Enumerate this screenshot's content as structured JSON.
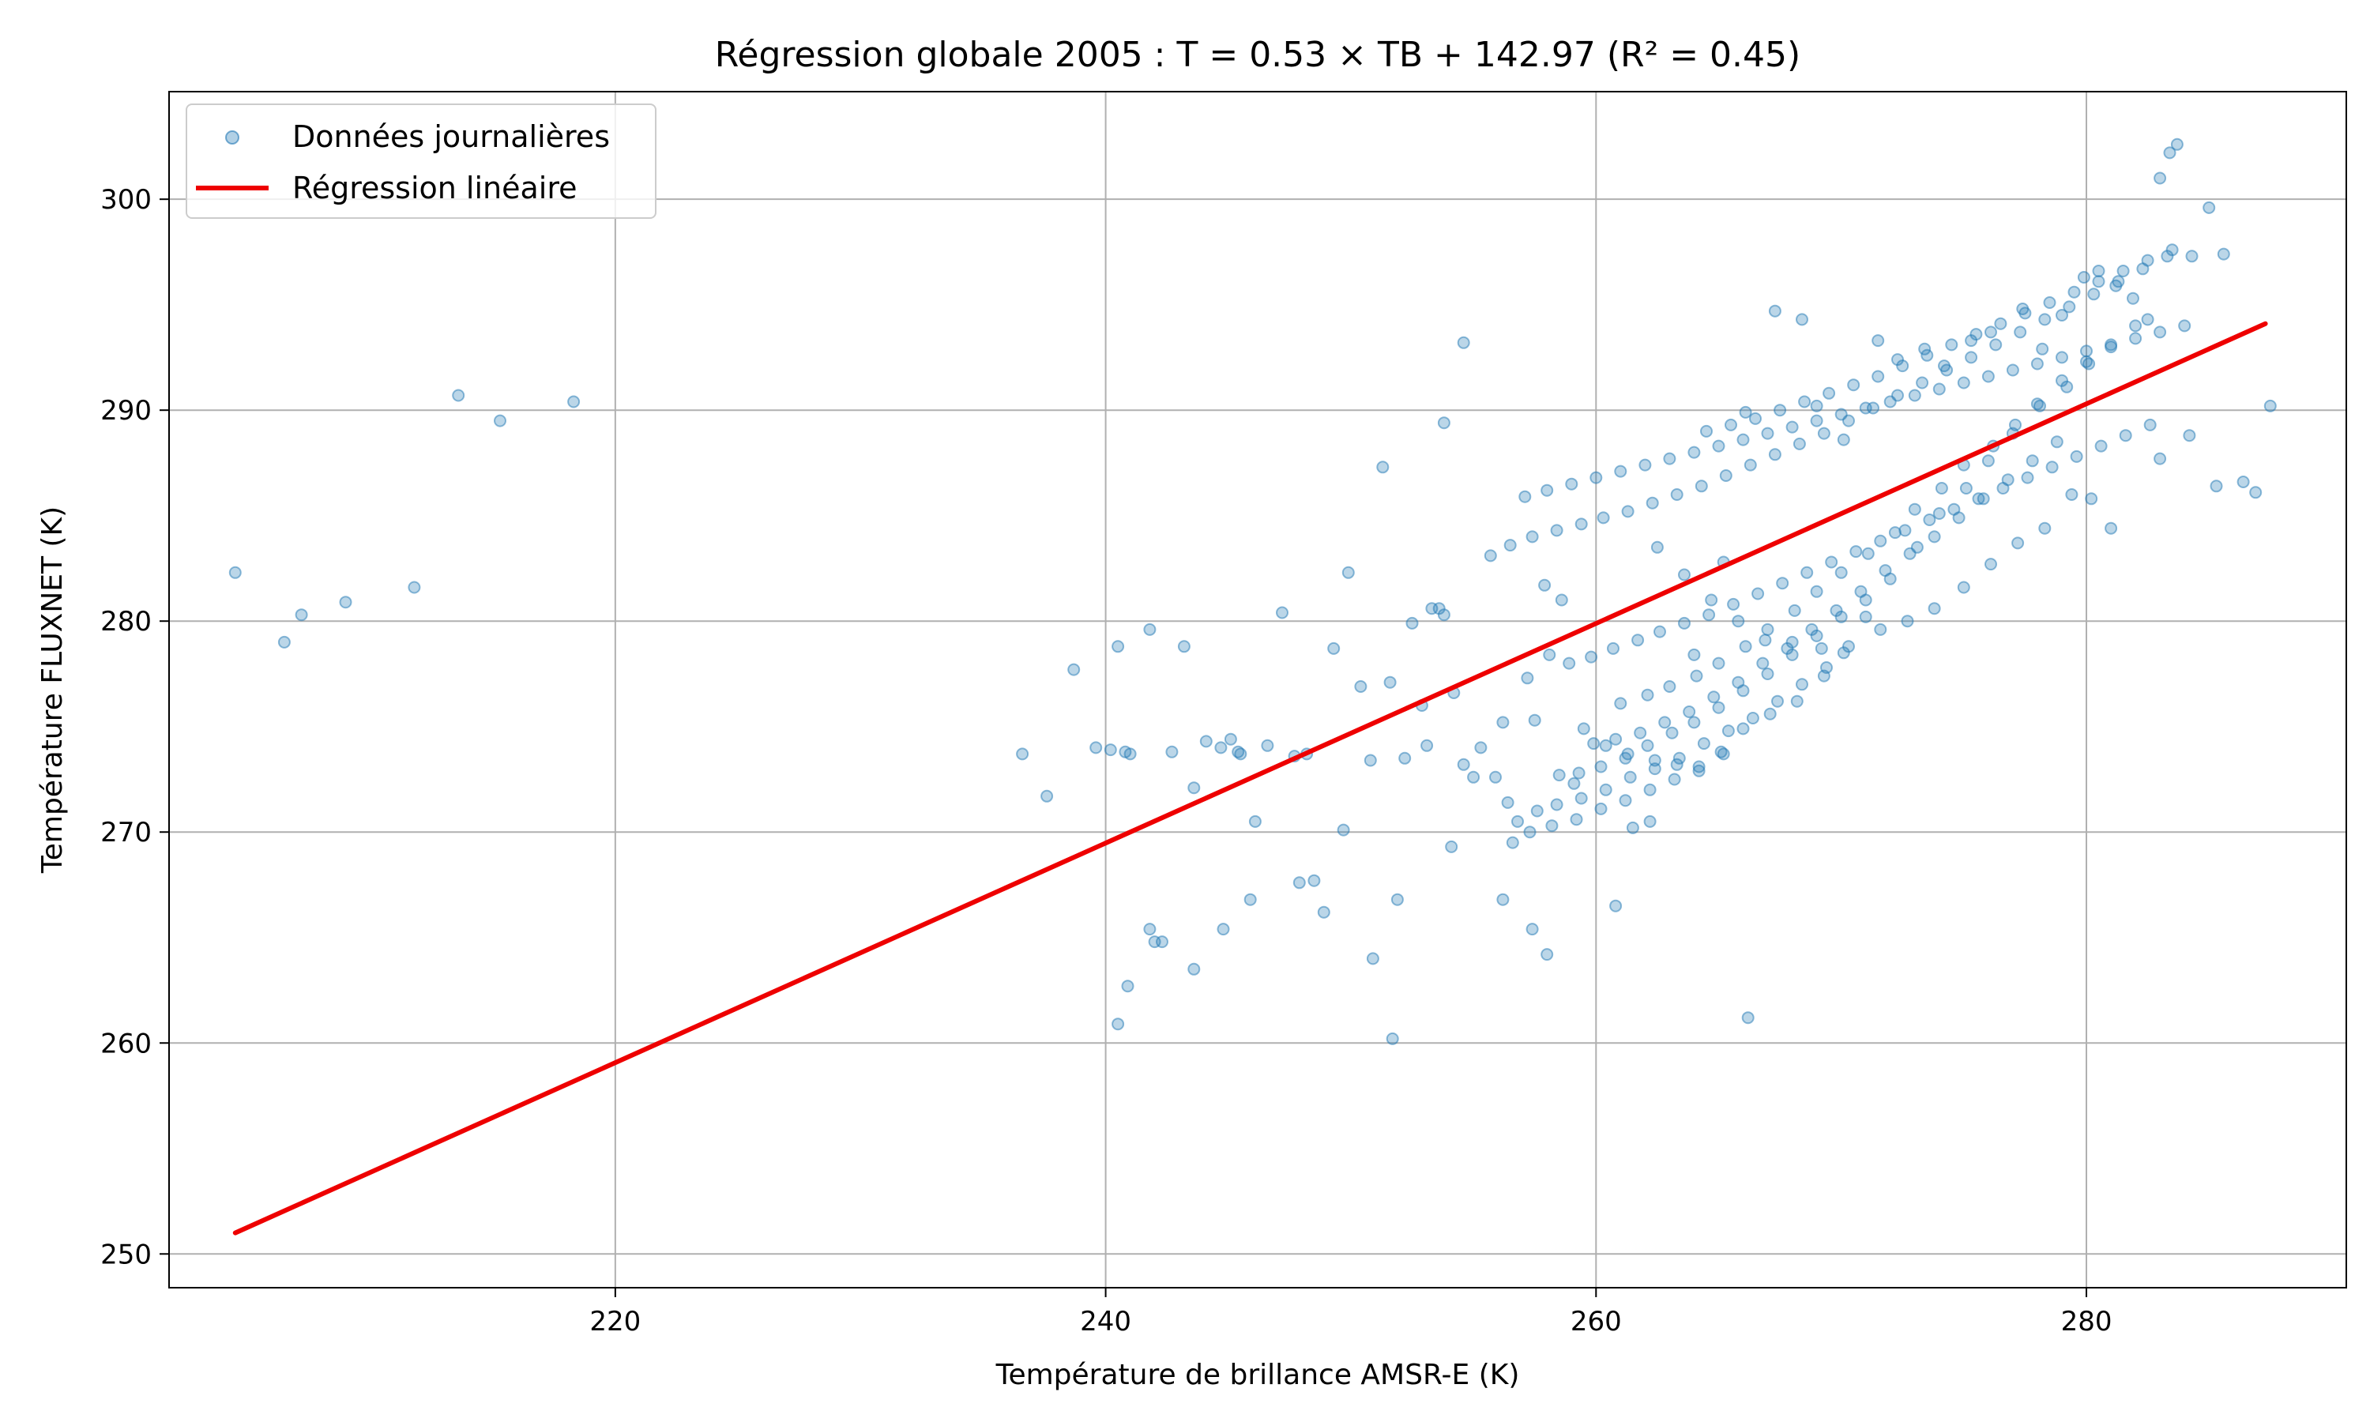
{
  "chart_data": {
    "type": "scatter",
    "title": "Régression globale 2005 : T = 0.53 × TB + 142.97 (R² = 0.45)",
    "xlabel": "Température de brillance AMSR-E (K)",
    "ylabel": "Température FLUXNET (K)",
    "xlim": [
      201.8,
      290.6
    ],
    "ylim": [
      248.4,
      305.1
    ],
    "xticks": [
      "220",
      "240",
      "260",
      "280"
    ],
    "yticks": [
      "250",
      "260",
      "270",
      "280",
      "290",
      "300"
    ],
    "xtick_values": [
      220,
      240,
      260,
      280
    ],
    "ytick_values": [
      250,
      260,
      270,
      280,
      290,
      300
    ],
    "grid": true,
    "legend_position": "top-left",
    "series": [
      {
        "name": "Données journalières",
        "kind": "scatter",
        "color": "#1f77b4",
        "x": [
          204.5,
          206.5,
          207.2,
          209.0,
          211.8,
          213.6,
          215.3,
          218.3,
          236.6,
          237.6,
          238.7,
          239.6,
          240.2,
          240.5,
          240.8,
          241.0,
          241.8,
          242.0,
          242.3,
          242.7,
          243.2,
          243.6,
          244.1,
          244.7,
          245.1,
          245.4,
          245.5,
          246.1,
          246.6,
          247.2,
          247.7,
          248.2,
          248.5,
          249.3,
          249.9,
          250.4,
          250.8,
          251.3,
          251.6,
          252.2,
          252.5,
          253.3,
          253.8,
          254.2,
          254.6,
          255.3,
          255.9,
          256.4,
          256.8,
          257.5,
          257.9,
          258.6,
          258.1,
          257.2,
          256.2,
          255.0,
          254.1,
          253.1,
          252.9,
          253.6,
          264.0,
          265.2,
          266.1,
          267.3,
          268.4,
          269.0,
          270.1,
          271.5,
          272.3,
          273.4,
          274.2,
          275.3,
          276.1,
          277.4,
          278.2,
          279.0,
          279.9,
          280.5,
          281.2,
          281.9,
          282.5,
          283.0,
          283.4,
          283.7,
          284.3,
          285.0,
          285.6,
          286.4,
          286.9,
          287.5,
          280.2,
          281.0,
          283.0,
          284.2,
          285.3,
          266.2,
          251.7,
          250.9,
          251.9,
          249.7,
          247.9,
          248.9,
          245.9,
          244.8,
          243.6,
          241.8,
          240.9,
          240.5,
          258.0,
          257.4,
          256.2,
          259.1,
          260.8,
          262.2,
          261.5,
          254.6,
          253.8,
          262.5,
          263.6,
          264.7,
          265.8,
          266.9,
          268.0,
          269.2,
          270.3,
          271.6,
          272.7,
          273.8,
          275.0,
          276.1,
          277.2,
          278.3,
          279.4,
          259.5,
          260.4,
          261.3,
          262.4,
          263.3,
          264.2,
          265.1,
          266.0,
          267.1,
          268.2,
          269.3,
          270.1,
          271.0,
          272.0,
          273.1,
          274.0,
          275.1,
          276.0,
          277.0,
          278.0,
          279.0,
          280.0,
          261.0,
          262.1,
          263.0,
          264.1,
          265.0,
          266.1,
          267.0,
          268.1,
          269.0,
          270.0,
          271.1,
          272.2,
          273.0,
          274.1,
          275.0,
          276.2,
          277.1,
          278.1,
          279.2,
          280.1,
          281.0,
          282.0,
          259.9,
          260.8,
          261.8,
          262.8,
          263.8,
          264.8,
          265.8,
          266.8,
          267.8,
          268.8,
          269.8,
          270.8,
          271.8,
          272.8,
          273.8,
          274.8,
          275.8,
          276.8,
          277.8,
          278.8,
          258.5,
          259.3,
          260.2,
          261.2,
          262.1,
          263.1,
          264.0,
          265.0,
          266.0,
          267.0,
          268.0,
          269.0,
          270.0,
          271.0,
          257.6,
          258.4,
          259.4,
          260.4,
          261.4,
          262.4,
          263.4,
          264.4,
          265.4,
          266.4,
          267.4,
          268.4,
          269.4,
          256.6,
          257.3,
          258.2,
          259.2,
          260.2,
          261.2,
          262.2,
          263.2,
          264.2,
          265.2,
          255.7,
          256.5,
          257.4,
          258.4,
          259.4,
          260.3,
          261.3,
          262.3,
          263.3,
          264.3,
          265.3,
          266.3,
          267.3,
          268.3,
          269.3,
          270.3,
          271.3,
          272.3,
          273.3,
          274.3,
          275.3,
          276.3,
          277.3,
          278.3,
          279.3,
          280.3,
          281.3,
          282.3,
          283.3,
          264.5,
          265.5,
          266.5,
          267.5,
          268.5,
          269.5,
          270.5,
          271.5,
          272.5,
          273.5,
          274.5,
          275.5,
          276.5,
          277.5,
          278.5,
          279.5,
          280.5,
          281.5,
          282.5,
          283.5,
          258.9,
          259.8,
          260.7,
          261.7,
          262.6,
          263.6,
          264.6,
          265.6,
          266.6,
          267.6,
          268.6,
          269.6,
          270.6,
          271.6,
          272.6,
          273.6,
          274.6,
          275.6,
          276.6,
          277.6,
          278.6,
          279.6,
          280.6,
          281.6,
          282.6,
          257.1,
          258.0,
          259.0,
          260.0,
          261.0,
          262.0,
          263.0,
          264.0,
          265.0,
          266.0,
          267.0,
          268.0,
          269.0,
          270.0,
          271.0,
          272.0,
          273.0,
          274.0,
          275.0,
          276.0,
          277.0,
          278.0,
          279.0,
          280.0,
          281.0,
          282.0,
          283.0,
          284.0
        ],
        "y": [
          282.3,
          279.0,
          280.3,
          280.9,
          281.6,
          290.7,
          289.5,
          290.4,
          273.7,
          271.7,
          277.7,
          274.0,
          273.9,
          278.8,
          273.8,
          273.7,
          279.6,
          264.8,
          264.8,
          273.8,
          278.8,
          272.1,
          274.3,
          274.0,
          274.4,
          273.8,
          273.7,
          270.5,
          274.1,
          280.4,
          273.6,
          273.7,
          267.7,
          278.7,
          282.3,
          276.9,
          273.4,
          287.3,
          277.1,
          273.5,
          279.9,
          280.6,
          280.3,
          276.6,
          273.2,
          274.0,
          272.6,
          271.4,
          270.5,
          275.3,
          281.7,
          281.0,
          278.4,
          277.3,
          275.2,
          272.6,
          269.3,
          274.1,
          276.0,
          280.6,
          278.4,
          282.8,
          289.9,
          294.7,
          294.3,
          290.2,
          288.6,
          293.3,
          292.4,
          292.9,
          292.1,
          293.3,
          293.7,
          294.8,
          292.9,
          294.5,
          296.3,
          296.6,
          295.9,
          295.3,
          294.3,
          301.0,
          302.2,
          302.6,
          297.3,
          299.6,
          297.4,
          286.6,
          286.1,
          290.2,
          285.8,
          284.4,
          287.7,
          288.8,
          286.4,
          261.2,
          260.2,
          264.0,
          266.8,
          270.1,
          267.6,
          266.2,
          266.8,
          265.4,
          263.5,
          265.4,
          262.7,
          260.9,
          264.2,
          265.4,
          266.8,
          272.3,
          266.5,
          270.5,
          270.2,
          293.2,
          289.4,
          283.5,
          282.2,
          281.0,
          280.0,
          279.1,
          279.0,
          278.7,
          278.8,
          279.6,
          280.0,
          280.6,
          281.6,
          282.7,
          283.7,
          284.4,
          286.0,
          274.9,
          274.1,
          273.7,
          273.4,
          273.2,
          272.9,
          273.8,
          274.9,
          275.6,
          276.2,
          277.4,
          278.5,
          280.2,
          282.0,
          283.5,
          285.1,
          286.3,
          287.6,
          288.9,
          290.3,
          291.4,
          292.3,
          276.1,
          276.5,
          276.9,
          277.4,
          278.0,
          278.8,
          279.6,
          280.5,
          281.4,
          282.3,
          283.2,
          284.2,
          285.3,
          286.3,
          287.4,
          288.3,
          289.3,
          290.2,
          291.1,
          292.2,
          293.0,
          294.0,
          274.2,
          274.4,
          274.7,
          275.2,
          275.7,
          276.4,
          277.1,
          278.0,
          278.7,
          279.6,
          280.5,
          281.4,
          282.4,
          283.2,
          284.0,
          284.9,
          285.8,
          286.7,
          287.6,
          288.5,
          272.7,
          272.8,
          273.1,
          273.5,
          274.1,
          274.7,
          275.2,
          275.9,
          276.7,
          277.5,
          278.4,
          279.3,
          280.2,
          281.0,
          271.0,
          271.3,
          271.6,
          272.0,
          272.6,
          273.0,
          273.5,
          274.2,
          274.8,
          275.4,
          276.2,
          277.0,
          277.8,
          269.5,
          270.0,
          270.3,
          270.6,
          271.1,
          271.5,
          272.0,
          272.5,
          273.1,
          273.7,
          283.1,
          283.6,
          284.0,
          284.3,
          284.6,
          284.9,
          285.2,
          285.6,
          286.0,
          286.4,
          286.9,
          287.4,
          287.9,
          288.4,
          288.9,
          289.5,
          290.1,
          290.7,
          291.3,
          291.9,
          292.5,
          293.1,
          293.7,
          294.3,
          294.9,
          295.5,
          296.1,
          296.7,
          297.3,
          289.0,
          289.3,
          289.6,
          290.0,
          290.4,
          290.8,
          291.2,
          291.6,
          292.1,
          292.6,
          293.1,
          293.6,
          294.1,
          294.6,
          295.1,
          295.6,
          296.1,
          296.6,
          297.1,
          297.6,
          278.0,
          278.3,
          278.7,
          279.1,
          279.5,
          279.9,
          280.3,
          280.8,
          281.3,
          281.8,
          282.3,
          282.8,
          283.3,
          283.8,
          284.3,
          284.8,
          285.3,
          285.8,
          286.3,
          286.8,
          287.3,
          287.8,
          288.3,
          288.8,
          289.3,
          285.9,
          286.2,
          286.5,
          286.8,
          287.1,
          287.4,
          287.7,
          288.0,
          288.3,
          288.6,
          288.9,
          289.2,
          289.5,
          289.8,
          290.1,
          290.4,
          290.7,
          291.0,
          291.3,
          291.6,
          291.9,
          292.2,
          292.5,
          292.8,
          293.1,
          293.4,
          293.7,
          294.0
        ]
      },
      {
        "name": "Régression linéaire",
        "kind": "line",
        "color": "#ee0000",
        "x": [
          204.5,
          287.3
        ],
        "y": [
          251.0,
          294.1
        ]
      }
    ]
  }
}
